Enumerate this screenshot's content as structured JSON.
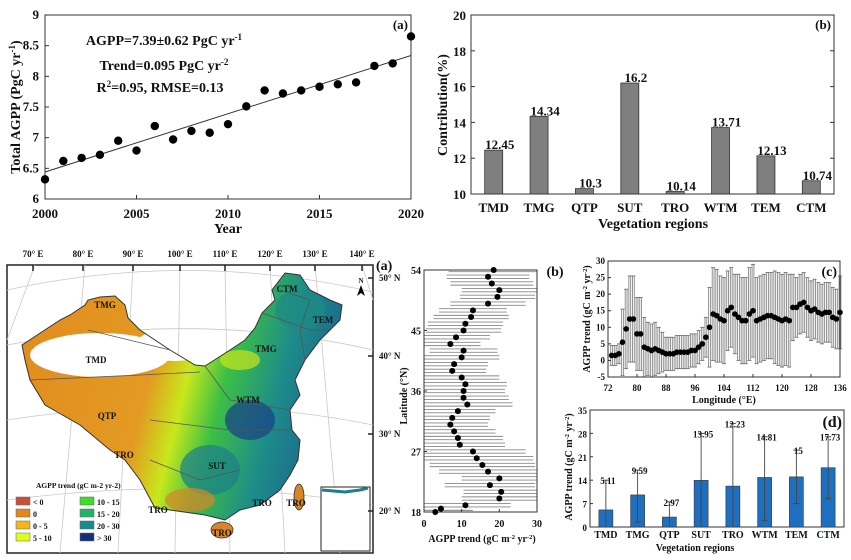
{
  "chart_data": [
    {
      "id": "total-agpp",
      "type": "scatter",
      "panel_label": "(a)",
      "xlabel": "Year",
      "ylabel": "Total AGPP (PgC yr",
      "ylabel_sup": "-1",
      "ylabel_end": ")",
      "xlim": [
        2000,
        2020
      ],
      "ylim": [
        6,
        9
      ],
      "xticks": [
        2000,
        2005,
        2010,
        2015,
        2020
      ],
      "yticks": [
        6,
        6.5,
        7,
        7.5,
        8,
        8.5,
        9
      ],
      "x": [
        2000,
        2001,
        2002,
        2003,
        2004,
        2005,
        2006,
        2007,
        2008,
        2009,
        2010,
        2011,
        2012,
        2013,
        2014,
        2015,
        2016,
        2017,
        2018,
        2019,
        2020
      ],
      "y": [
        6.32,
        6.62,
        6.67,
        6.72,
        6.95,
        6.79,
        7.19,
        6.97,
        7.11,
        7.08,
        7.22,
        7.51,
        7.77,
        7.72,
        7.77,
        7.83,
        7.87,
        7.9,
        8.17,
        8.21,
        8.65
      ],
      "trend_line": {
        "x": [
          2000,
          2020
        ],
        "y": [
          6.44,
          8.34
        ]
      },
      "annotations": [
        {
          "text": "AGPP=7.39±0.62 PgC yr",
          "sup": "-1"
        },
        {
          "text": "Trend=0.095 PgC yr",
          "sup": "-2"
        },
        {
          "text": "R",
          "sup": "2",
          "after": "=0.95, RMSE=0.13"
        }
      ],
      "grid": false
    },
    {
      "id": "contribution",
      "type": "bar",
      "panel_label": "(b)",
      "xlabel": "Vegetation regions",
      "ylabel": "Contribution(%)",
      "ylim": [
        10,
        20
      ],
      "yticks": [
        10,
        12,
        14,
        16,
        18,
        20
      ],
      "categories": [
        "TMD",
        "TMG",
        "QTP",
        "SUT",
        "TRO",
        "WTM",
        "TEM",
        "CTM"
      ],
      "values": [
        12.45,
        14.34,
        10.3,
        16.2,
        10.14,
        13.71,
        12.13,
        10.74
      ],
      "data_labels": [
        "12.45",
        "14.34",
        "10.3",
        "16.2",
        "10.14",
        "13.71",
        "12.13",
        "10.74"
      ],
      "bar_color": "#7f7f7f",
      "grid": false
    },
    {
      "id": "latitude-profile",
      "type": "scatter",
      "xlabel": "AGPP trend (gC m",
      "xlabel_sup1": "-2",
      "xlabel_mid": " yr",
      "xlabel_sup2": "-2",
      "xlabel_end": ")",
      "ylabel": "Latitude (°N)",
      "xlim": [
        0,
        30
      ],
      "ylim": [
        18,
        54
      ],
      "xticks": [
        0,
        10,
        20,
        30
      ],
      "yticks": [
        18,
        27,
        36,
        45,
        54
      ],
      "y": [
        54,
        53,
        52,
        51,
        50,
        49,
        48,
        47,
        46,
        45,
        44,
        43,
        42,
        41,
        40,
        39,
        38,
        37,
        36,
        35,
        34,
        33,
        32,
        31,
        30,
        29,
        28,
        27,
        26,
        25,
        24,
        23,
        22,
        21,
        20,
        19,
        18.5,
        18
      ],
      "x": [
        18.5,
        17,
        18,
        20,
        19.5,
        17,
        13,
        12.5,
        11,
        10.5,
        8.5,
        7,
        10.5,
        10,
        8,
        7.5,
        10,
        11,
        10.5,
        10.5,
        11.5,
        9,
        7.5,
        7,
        8,
        9,
        9.5,
        13,
        14,
        15.5,
        17,
        20,
        17.5,
        20.5,
        20,
        11,
        4.5,
        3
      ],
      "xerr": [
        12,
        11,
        11,
        10,
        10,
        10,
        9,
        10,
        10,
        10,
        9,
        8,
        9,
        10,
        9,
        9,
        10,
        11,
        11,
        12,
        12,
        10,
        10,
        10,
        11,
        12,
        12,
        14,
        15,
        14,
        13,
        10,
        12,
        10,
        10,
        12,
        8,
        10
      ],
      "grid": false
    },
    {
      "id": "longitude-profile",
      "type": "scatter",
      "panel_label_left": "(b)",
      "panel_label": "(c)",
      "xlabel": "Longitude (°E)",
      "ylabel": "AGPP trend (gC m",
      "ylabel_sup1": "-2",
      "ylabel_mid": " yr",
      "ylabel_sup2": "-2",
      "ylabel_end": ")",
      "xlim": [
        72,
        136
      ],
      "ylim": [
        -5,
        30
      ],
      "xticks": [
        72,
        80,
        88,
        96,
        104,
        112,
        120,
        128,
        136
      ],
      "yticks": [
        -5,
        0,
        5,
        10,
        15,
        20,
        25,
        30
      ],
      "x": [
        73,
        74,
        75,
        76,
        77,
        78,
        79,
        80,
        81,
        82,
        83,
        84,
        85,
        86,
        87,
        88,
        89,
        90,
        91,
        92,
        93,
        94,
        95,
        96,
        97,
        98,
        99,
        100,
        101,
        102,
        103,
        104,
        105,
        106,
        107,
        108,
        109,
        110,
        111,
        112,
        113,
        114,
        115,
        116,
        117,
        118,
        119,
        120,
        121,
        122,
        123,
        124,
        125,
        126,
        127,
        128,
        129,
        130,
        131,
        132,
        133,
        134,
        135,
        136
      ],
      "y": [
        1.5,
        1.5,
        2,
        5.5,
        9.5,
        12.5,
        12.5,
        8,
        8,
        4,
        3.5,
        3,
        3.5,
        3,
        2.5,
        2,
        2,
        2,
        2.5,
        2.5,
        2.5,
        2.5,
        3,
        3,
        4,
        5,
        7,
        10,
        14,
        13.5,
        12.5,
        12,
        15,
        16,
        14,
        13,
        12,
        12,
        14,
        15,
        12,
        12.5,
        13,
        13.5,
        13.5,
        13,
        12.5,
        12,
        12.5,
        12,
        16,
        16,
        17,
        17.5,
        16,
        15,
        15.5,
        14.5,
        14,
        14.5,
        14.5,
        13,
        12.5,
        14.5
      ],
      "yerr": [
        3,
        3,
        3,
        10,
        12,
        13,
        13,
        11,
        11,
        9,
        8,
        8,
        8,
        7,
        6,
        5,
        5,
        5,
        5,
        5,
        5,
        5,
        5,
        5,
        5,
        5,
        6,
        12,
        14,
        14,
        13,
        13,
        12,
        12,
        12,
        13,
        13,
        13,
        14,
        14,
        13,
        13,
        13,
        13,
        13,
        14,
        14,
        14,
        14,
        14,
        10,
        9,
        9,
        9,
        9,
        9,
        9,
        9,
        9,
        9,
        9,
        9,
        9,
        11
      ],
      "grid": false
    },
    {
      "id": "regional-trend",
      "type": "bar",
      "panel_label": "(d)",
      "xlabel": "Vegetation regions",
      "ylabel": "AGPP trend (gC m",
      "ylabel_sup1": "-2",
      "ylabel_mid": " yr",
      "ylabel_sup2": "-2",
      "ylabel_end": ")",
      "ylim": [
        0,
        35
      ],
      "yticks": [
        0,
        7,
        14,
        21,
        28,
        35
      ],
      "categories": [
        "TMD",
        "TMG",
        "QTP",
        "SUT",
        "TRO",
        "WTM",
        "TEM",
        "CTM"
      ],
      "values": [
        5.11,
        9.59,
        2.97,
        13.95,
        12.23,
        14.81,
        15,
        17.73
      ],
      "data_labels": [
        "5.11",
        "9.59",
        "2.97",
        "13.95",
        "12.23",
        "14.81",
        "15",
        "17.73"
      ],
      "error_low": [
        0,
        1.5,
        0,
        0,
        0,
        2,
        7,
        8.5
      ],
      "error_high": [
        14,
        17,
        7.5,
        28,
        31,
        27,
        23,
        27
      ],
      "bar_color": "#1f6fc1",
      "grid": false
    }
  ],
  "map": {
    "panel_label": "(a)",
    "lon_labels": [
      "70° E",
      "80° E",
      "90° E",
      "100° E",
      "110° E",
      "120° E",
      "130° E",
      "140° E"
    ],
    "lat_labels": [
      "50° N",
      "40° N",
      "30° N",
      "20° N"
    ],
    "region_labels": [
      "TMG",
      "CTM",
      "TEM",
      "TMD",
      "TMG",
      "WTM",
      "QTP",
      "TRO",
      "SUT",
      "TRO",
      "TRO",
      "TRO",
      "TRO"
    ],
    "north_arrow": "N",
    "legend": {
      "title": "AGPP trend (gC m-2 yr-2)",
      "items": [
        {
          "label": "< 0",
          "color": "#c8503a"
        },
        {
          "label": "0",
          "color": "#e2861f"
        },
        {
          "label": "0 - 5",
          "color": "#f2b51a"
        },
        {
          "label": "5 - 10",
          "color": "#dcff1a"
        },
        {
          "label": "10 - 15",
          "color": "#3fdc2a"
        },
        {
          "label": "15 - 20",
          "color": "#22b36a"
        },
        {
          "label": "20 - 30",
          "color": "#1a8a8e"
        },
        {
          "label": "> 30",
          "color": "#12307e"
        }
      ]
    }
  }
}
